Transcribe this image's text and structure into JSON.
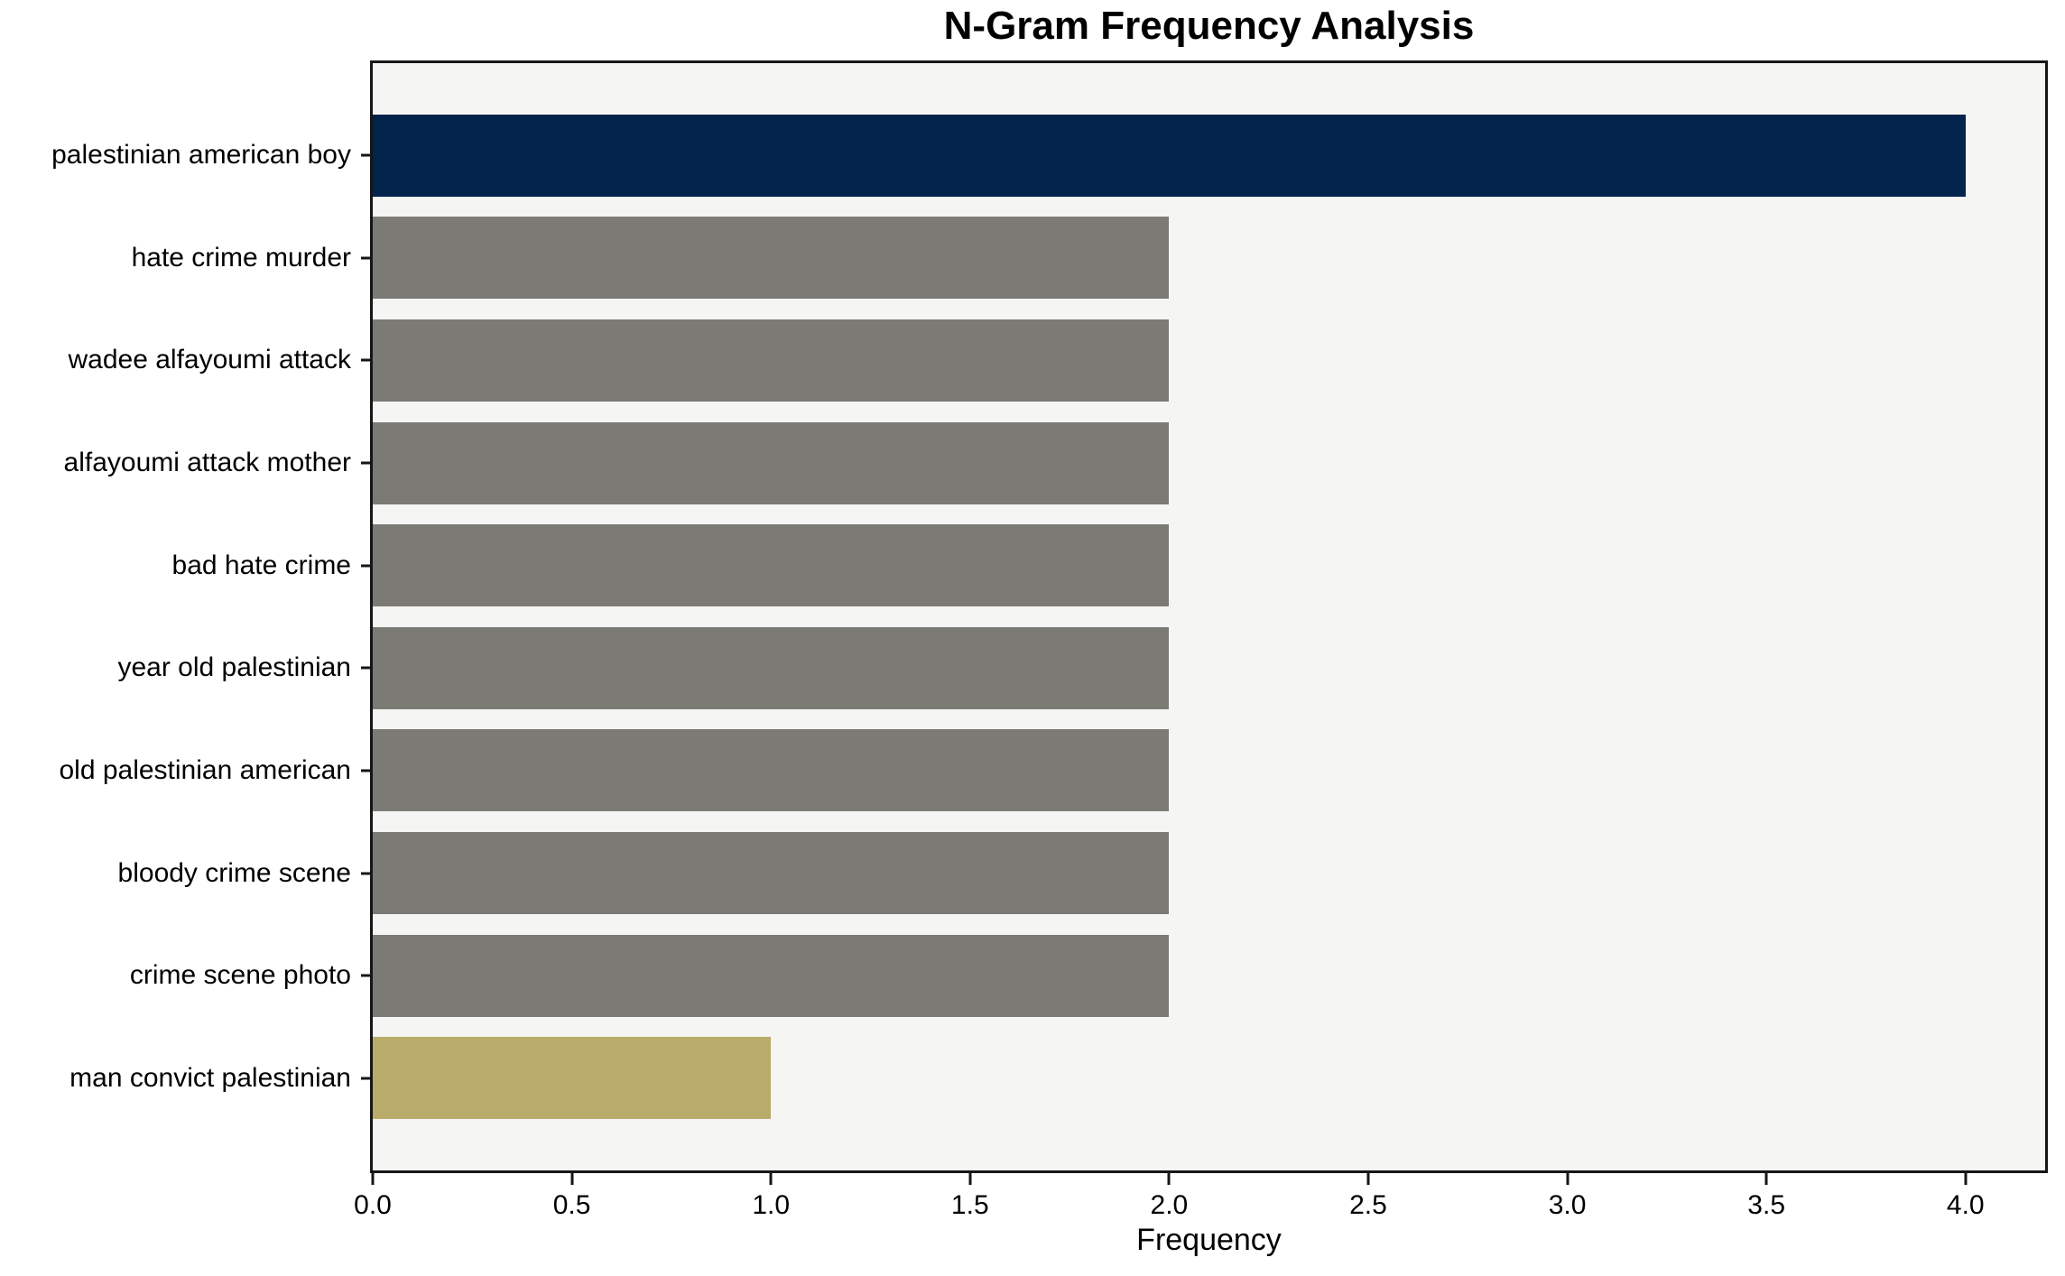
{
  "figure": {
    "title": "N-Gram Frequency Analysis",
    "xlabel": "Frequency"
  },
  "chart_data": {
    "type": "bar",
    "orientation": "horizontal",
    "title": "N-Gram Frequency Analysis",
    "xlabel": "Frequency",
    "ylabel": "",
    "categories": [
      "palestinian american boy",
      "hate crime murder",
      "wadee alfayoumi attack",
      "alfayoumi attack mother",
      "bad hate crime",
      "year old palestinian",
      "old palestinian american",
      "bloody crime scene",
      "crime scene photo",
      "man convict palestinian"
    ],
    "values": [
      4,
      2,
      2,
      2,
      2,
      2,
      2,
      2,
      2,
      1
    ],
    "bar_colors": [
      "#02234c",
      "#7b7a75",
      "#7b7a75",
      "#7b7a75",
      "#7b7a75",
      "#7b7a75",
      "#7b7a75",
      "#7b7a75",
      "#7b7a75",
      "#b9ab69"
    ],
    "xlim": [
      0,
      4.2
    ],
    "ylim": [
      -0.9,
      9.9
    ],
    "bar_thickness_units": 0.8,
    "xticks": [
      0,
      0.5,
      1,
      1.5,
      2,
      2.5,
      3,
      3.5,
      4
    ],
    "xtick_labels": [
      "0.0",
      "0.5",
      "1.0",
      "1.5",
      "2.0",
      "2.5",
      "3.0",
      "3.5",
      "4.0"
    ],
    "grid": false,
    "legend_position": "none",
    "plot_background": "#f5f5f4",
    "figure_background": "#ffffff",
    "spine_color": "#161616"
  }
}
